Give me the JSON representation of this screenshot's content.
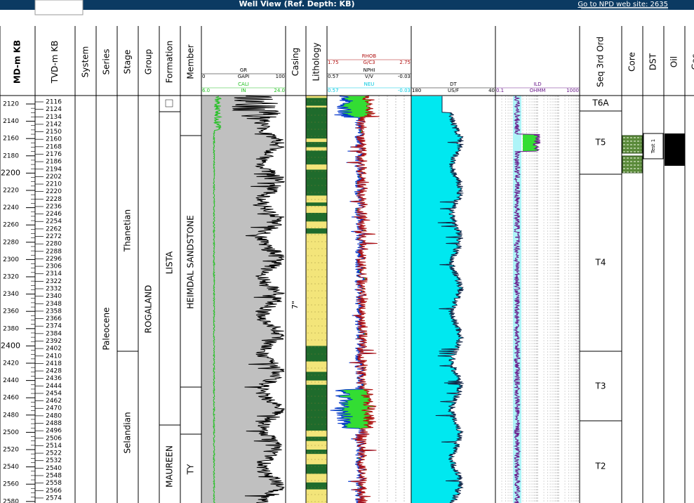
{
  "header": {
    "title": "Well View (Ref. Depth: KB)",
    "link": "Go to NPD web site: 2635"
  },
  "columns": [
    "MD-m KB",
    "TVD-m KB",
    "System",
    "Series",
    "Stage",
    "Group",
    "Formation",
    "Member",
    "Casing",
    "Lithology",
    "Seq 3rd Ord",
    "Core",
    "DST",
    "Oil",
    "Gas"
  ],
  "curves": {
    "gr": {
      "name": "GR",
      "scale": [
        "0",
        "GAPI",
        "100"
      ]
    },
    "cali": {
      "name": "CALI",
      "scale": [
        "6.0",
        "IN",
        "24.0"
      ]
    },
    "rhob": {
      "name": "RHOB",
      "scale": [
        "1.75",
        "G/C3",
        "2.75"
      ]
    },
    "nphi": {
      "name": "NPHI",
      "scale": [
        "0.57",
        "V/V",
        "-0.03"
      ]
    },
    "neu": {
      "name": "NEU",
      "scale": [
        "0.57",
        "",
        "-0.03"
      ]
    },
    "dt": {
      "name": "DT",
      "scale": [
        "180",
        "US/F",
        "40"
      ]
    },
    "ild": {
      "name": "ILD",
      "scale": [
        "0.1",
        "OHMM",
        "1000"
      ]
    }
  },
  "md": [
    2120,
    2140,
    2160,
    2180,
    2200,
    2220,
    2240,
    2260,
    2280,
    2300,
    2320,
    2340,
    2360,
    2380,
    2400,
    2420,
    2440,
    2460,
    2480,
    2500,
    2520,
    2540,
    2560,
    2580
  ],
  "tvd": [
    2116,
    2124,
    2134,
    2142,
    2150,
    2160,
    2168,
    2176,
    2186,
    2194,
    2202,
    2210,
    2220,
    2228,
    2236,
    2246,
    2254,
    2262,
    2272,
    2280,
    2288,
    2296,
    2306,
    2314,
    2322,
    2332,
    2340,
    2348,
    2358,
    2366,
    2374,
    2384,
    2392,
    2402,
    2410,
    2418,
    2428,
    2436,
    2444,
    2454,
    2462,
    2470,
    2480,
    2488,
    2496,
    2506,
    2514,
    2522,
    2532,
    2540,
    2548,
    2558,
    2566,
    2574
  ],
  "series": [
    "Paleocene"
  ],
  "stage": [
    "Thanetian",
    "Selandian"
  ],
  "group": [
    "ROGALAND"
  ],
  "formation": [
    "LISTA",
    "MAUREEN"
  ],
  "member": [
    "HEIMDAL SANDSTONE",
    "TY"
  ],
  "casing": "7\"",
  "seq": [
    "T6A",
    "T5",
    "T4",
    "T3",
    "T2"
  ],
  "dst": "Test 1"
}
